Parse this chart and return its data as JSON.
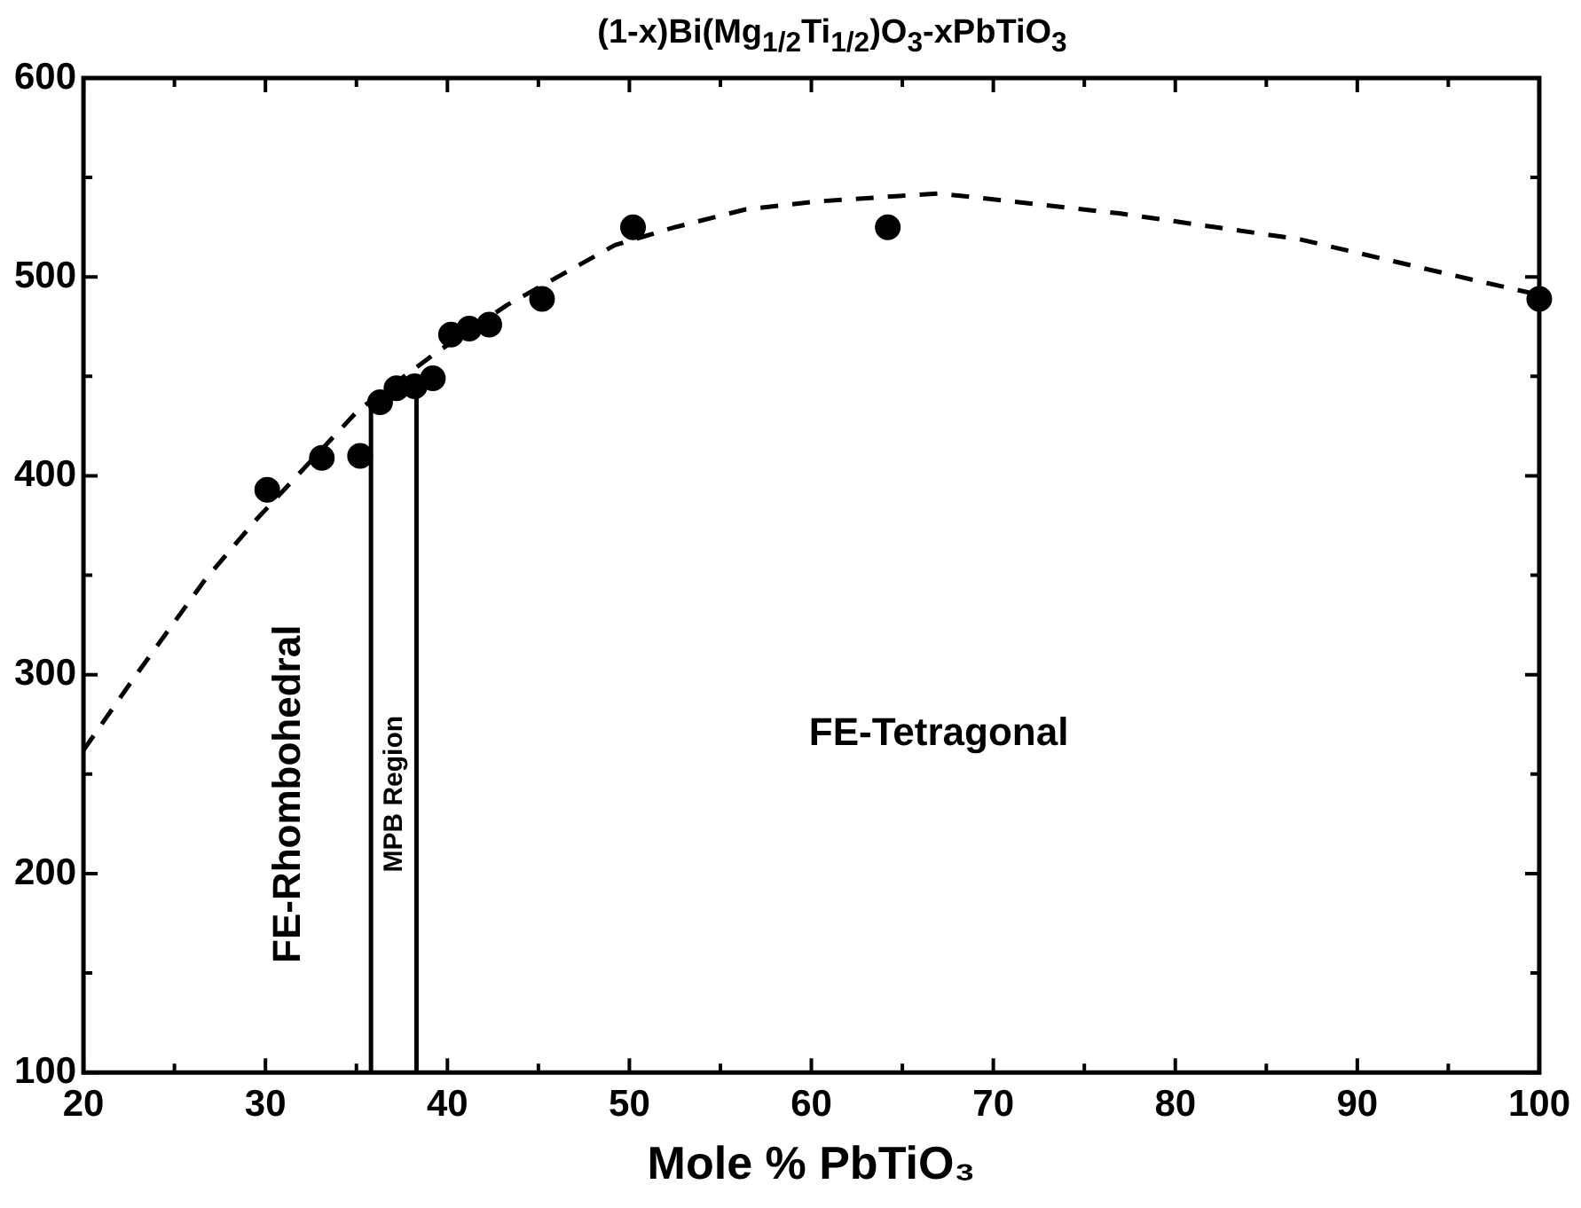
{
  "chart_data": {
    "type": "scatter",
    "title": "(1-x)Bi(Mg$_{1/2}$Ti$_{1/2}$)O$_{3}$-xPbTiO$_{3}$",
    "xlabel": "Mole % PbTiO₃",
    "xlim": [
      20,
      100
    ],
    "xticks": [
      20,
      {
        "value": 25,
        "label": null
      },
      30,
      {
        "value": 35,
        "label": null
      },
      40,
      {
        "value": 45,
        "label": null
      },
      50,
      {
        "value": 55,
        "label": null
      },
      60,
      {
        "value": 65,
        "label": null
      },
      70,
      {
        "value": 75,
        "label": null
      },
      80,
      {
        "value": 85,
        "label": null
      },
      90,
      {
        "value": 95,
        "label": null
      },
      100
    ],
    "ylim": [
      100,
      600
    ],
    "yticks": [
      100,
      {
        "value": 150,
        "label": null
      },
      200,
      {
        "value": 250,
        "label": null
      },
      300,
      {
        "value": 350,
        "label": null
      },
      400,
      {
        "value": 450,
        "label": null
      },
      500,
      {
        "value": 550,
        "label": null
      },
      600
    ],
    "grid": false,
    "legend": false,
    "annotations": [
      "FE-Rhombohedral",
      "MPB Region",
      "FE-Tetragonal"
    ],
    "series": [
      {
        "type": "scatter",
        "color": "#000000",
        "marker": "circle",
        "x": [
          30.1,
          33.1,
          35.2,
          36.3,
          37.2,
          38.2,
          39.2,
          40.2,
          41.2,
          42.3,
          45.2,
          50.2,
          64.2,
          100
        ],
        "values": [
          393,
          409,
          410,
          437,
          444,
          445,
          449,
          471,
          474,
          476,
          489,
          525,
          525,
          489
        ]
      },
      {
        "type": "line",
        "color": "#000000",
        "marker": "none",
        "line_style": "dashed",
        "x": [
          20,
          22.9,
          26.7,
          29.5,
          35.1,
          39.4,
          43.3,
          49.2,
          52.5,
          56.4,
          60.4,
          67,
          76.9,
          86.8,
          96.6,
          100
        ],
        "values": [
          262,
          300,
          348,
          378,
          433,
          462,
          486,
          516,
          525,
          534,
          538,
          542,
          532,
          519,
          498,
          491
        ]
      },
      {
        "type": "line",
        "color": "#000000",
        "marker": "none",
        "line_style": "solid",
        "x": [
          35.8,
          35.8
        ],
        "values": [
          100,
          437
        ]
      },
      {
        "type": "line",
        "color": "#000000",
        "marker": "none",
        "line_style": "solid",
        "x": [
          38.3,
          38.3
        ],
        "values": [
          100,
          445
        ]
      }
    ]
  }
}
